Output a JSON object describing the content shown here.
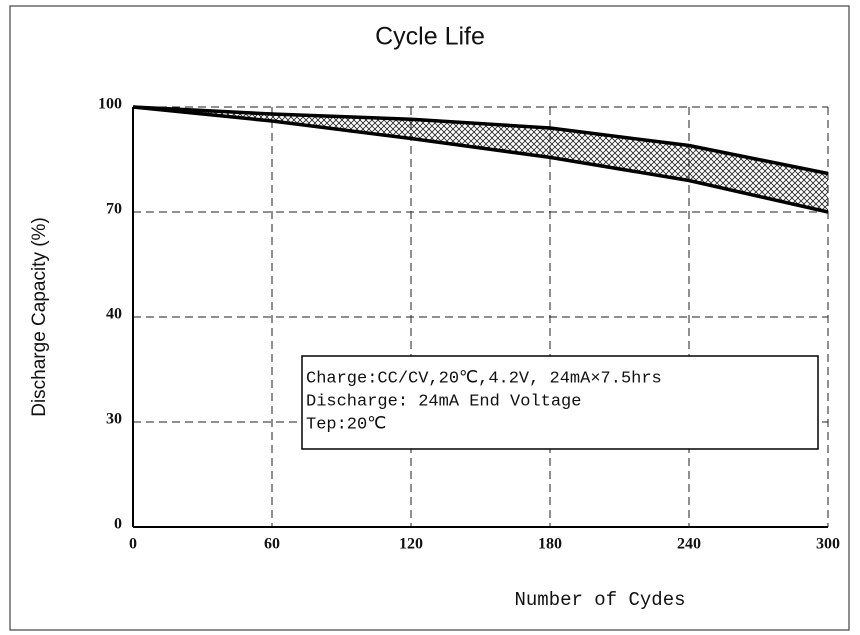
{
  "chart_data": {
    "type": "line",
    "title": "Cycle Life",
    "x_label": "Number of Cydes",
    "y_label": "Discharge Capacity (%)",
    "x": [
      0,
      60,
      120,
      180,
      240,
      300
    ],
    "series": [
      {
        "color": "#000000",
        "values": [
          100,
          98,
          96.5,
          94,
          89,
          81
        ]
      },
      {
        "color": "#000000",
        "values": [
          100,
          96,
          91,
          85.6,
          79,
          70
        ]
      }
    ],
    "band_fill": "crosshatch",
    "xlim": [
      0,
      300
    ],
    "xticks": [
      0,
      60,
      120,
      180,
      240,
      300
    ],
    "ylim": [
      0,
      100
    ],
    "yticks": [
      0,
      30,
      40,
      70,
      100
    ],
    "grid": true,
    "annotation": [
      "Charge:CC/CV,20℃,4.2V, 24mA×7.5hrs",
      "Discharge: 24mA  End Voltage",
      "Tep:20℃"
    ]
  }
}
